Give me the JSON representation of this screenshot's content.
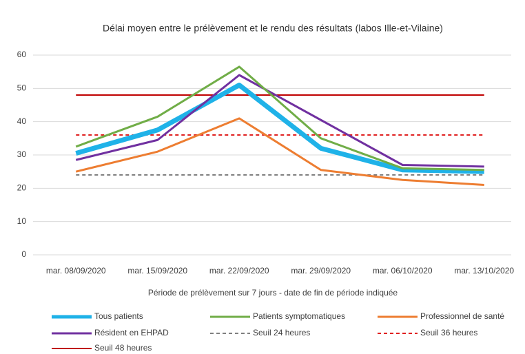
{
  "chart_data": {
    "type": "line",
    "title": "Délai moyen entre le prélèvement et le rendu des résultats (labos Ille-et-Vilaine)",
    "x_label": "Période de prélèvement sur 7 jours - date de fin de période indiquée",
    "categories": [
      "mar. 08/09/2020",
      "mar. 15/09/2020",
      "mar. 22/09/2020",
      "mar. 29/09/2020",
      "mar. 06/10/2020",
      "mar. 13/10/2020"
    ],
    "series": [
      {
        "name": "Tous patients",
        "color": "#1fb2e8",
        "width": 7,
        "dashed": false,
        "values": [
          30.5,
          37.5,
          51,
          32,
          25.5,
          25
        ]
      },
      {
        "name": "Patients symptomatiques",
        "color": "#70ad47",
        "width": 3,
        "dashed": false,
        "values": [
          32.5,
          41.5,
          56.5,
          35,
          26,
          25.5
        ]
      },
      {
        "name": "Professionnel de santé",
        "color": "#ed7d31",
        "width": 3,
        "dashed": false,
        "values": [
          25,
          31,
          41,
          25.5,
          22.5,
          21
        ]
      },
      {
        "name": "Résident en EHPAD",
        "color": "#7030a0",
        "width": 3,
        "dashed": false,
        "values": [
          28.5,
          34.5,
          54,
          40.5,
          27,
          26.5
        ]
      },
      {
        "name": "Seuil 24 heures",
        "color": "#7f7f7f",
        "width": 2,
        "dashed": true,
        "values": [
          24,
          24,
          24,
          24,
          24,
          24
        ]
      },
      {
        "name": "Seuil 36 heures",
        "color": "#e02020",
        "width": 2,
        "dashed": true,
        "values": [
          36,
          36,
          36,
          36,
          36,
          36
        ]
      },
      {
        "name": "Seuil 48 heures",
        "color": "#c00000",
        "width": 2,
        "dashed": false,
        "values": [
          48,
          48,
          48,
          48,
          48,
          48
        ]
      }
    ],
    "ylim": [
      0,
      60
    ],
    "yticks": [
      0,
      10,
      20,
      30,
      40,
      50,
      60
    ],
    "grid": true
  }
}
